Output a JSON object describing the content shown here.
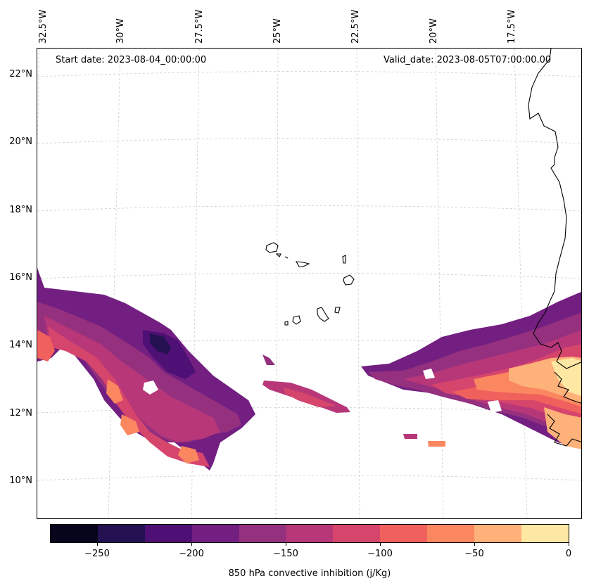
{
  "map": {
    "start_date": "Start date: 2023-08-04_00:00:00",
    "valid_date": "Valid_date: 2023-08-05T07:00:00.00",
    "lon_labels": [
      "32.5°W",
      "30°W",
      "27.5°W",
      "25°W",
      "22.5°W",
      "20°W",
      "17.5°W"
    ],
    "lat_labels": [
      "22°N",
      "20°N",
      "18°N",
      "16°N",
      "14°N",
      "12°N",
      "10°N"
    ],
    "colorbar": {
      "label": "850 hPa convective inhibition (j/Kg)",
      "tick_labels": [
        "−250",
        "−200",
        "−150",
        "−100",
        "−50",
        "0"
      ],
      "levels": [
        -275,
        -250,
        -225,
        -200,
        -175,
        -150,
        -125,
        -100,
        -75,
        -50,
        -25,
        0
      ],
      "colors": [
        "#07051b",
        "#231151",
        "#4e1074",
        "#721f81",
        "#95307f",
        "#b73779",
        "#d6456c",
        "#f0605d",
        "#fb8761",
        "#feb179",
        "#fee6a3"
      ]
    }
  }
}
